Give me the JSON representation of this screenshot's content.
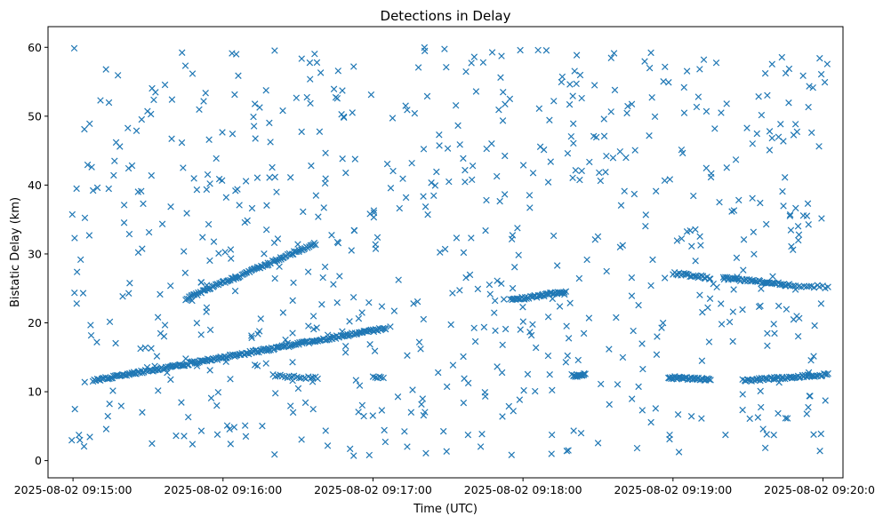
{
  "chart_data": {
    "type": "scatter",
    "title": "Detections in Delay",
    "xlabel": "Time (UTC)",
    "ylabel": "Bistatic Delay (km)",
    "marker": "x",
    "color": "#1f77b4",
    "xlim": [
      "2025-08-02 09:14:50",
      "2025-08-02 09:20:08"
    ],
    "ylim": [
      -2.5,
      63
    ],
    "xticks": [
      "2025-08-02 09:15:00",
      "2025-08-02 09:16:00",
      "2025-08-02 09:17:00",
      "2025-08-02 09:18:00",
      "2025-08-02 09:19:00",
      "2025-08-02 09:20:00"
    ],
    "yticks": [
      0,
      10,
      20,
      30,
      40,
      50,
      60
    ],
    "grid": false,
    "tracks": [
      {
        "x": [
          "2025-08-02 09:15:08",
          "2025-08-02 09:17:05"
        ],
        "y": [
          11.6,
          19.2
        ],
        "count": 230
      },
      {
        "x": [
          "2025-08-02 09:15:45",
          "2025-08-02 09:16:37"
        ],
        "y": [
          23.5,
          31.5
        ],
        "count": 100
      },
      {
        "x": [
          "2025-08-02 09:17:55",
          "2025-08-02 09:18:17"
        ],
        "y": [
          23.3,
          24.5
        ],
        "count": 45
      },
      {
        "x": [
          "2025-08-02 09:18:20",
          "2025-08-02 09:18:25"
        ],
        "y": [
          12.2,
          12.5
        ],
        "count": 14
      },
      {
        "x": [
          "2025-08-02 09:18:58",
          "2025-08-02 09:19:15"
        ],
        "y": [
          12.1,
          11.7
        ],
        "count": 40
      },
      {
        "x": [
          "2025-08-02 09:19:28",
          "2025-08-02 09:20:02"
        ],
        "y": [
          11.6,
          12.5
        ],
        "count": 60
      },
      {
        "x": [
          "2025-08-02 09:19:00",
          "2025-08-02 09:19:15"
        ],
        "y": [
          27.2,
          26.5
        ],
        "count": 25
      },
      {
        "x": [
          "2025-08-02 09:19:20",
          "2025-08-02 09:19:47"
        ],
        "y": [
          26.5,
          25.5
        ],
        "count": 50
      },
      {
        "x": [
          "2025-08-02 09:19:48",
          "2025-08-02 09:20:02"
        ],
        "y": [
          25.4,
          25.2
        ],
        "count": 14
      },
      {
        "x": [
          "2025-08-02 09:16:20",
          "2025-08-02 09:16:38"
        ],
        "y": [
          12.3,
          12.0
        ],
        "count": 20
      },
      {
        "x": [
          "2025-08-02 09:17:00",
          "2025-08-02 09:17:04"
        ],
        "y": [
          12.1,
          12.0
        ],
        "count": 6
      }
    ],
    "clutter": {
      "x": [
        "2025-08-02 09:14:59",
        "2025-08-02 09:20:02"
      ],
      "y": [
        0.5,
        60
      ],
      "count": 720
    }
  }
}
